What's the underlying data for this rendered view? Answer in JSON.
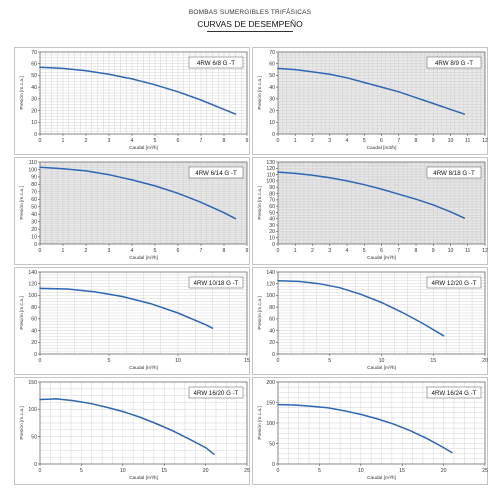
{
  "header": {
    "brand": "BOMBAS SUMERGIBLES TRIFÁSICAS",
    "subtitle": "CURVAS DE DESEMPEÑO"
  },
  "colors": {
    "curve": "#2e66b4",
    "shaded_bg": "#e9e9e9"
  },
  "chart_data": [
    {
      "type": "line",
      "title": "4RW 6/8 G -T",
      "xlabel": "Caudal [m³/h]",
      "ylabel": "Presión [m.c.a.]",
      "xlim": [
        0,
        9
      ],
      "ylim": [
        0,
        70
      ],
      "xticks": [
        0,
        1,
        2,
        3,
        4,
        5,
        6,
        7,
        8,
        9
      ],
      "yticks": [
        0,
        10,
        20,
        30,
        40,
        50,
        60,
        70
      ],
      "shaded": false,
      "grid": true,
      "series": [
        {
          "x": [
            0,
            1,
            2,
            3,
            4,
            5,
            6,
            7,
            8,
            8.5
          ],
          "y": [
            57,
            56,
            54,
            51,
            47,
            42,
            36,
            29,
            21,
            17
          ]
        }
      ]
    },
    {
      "type": "line",
      "title": "4RW 8/9 G -T",
      "xlabel": "Caudal [m3/h]",
      "ylabel": "Presión [m.c.a.]",
      "xlim": [
        0,
        12
      ],
      "ylim": [
        0,
        70
      ],
      "xticks": [
        0,
        1,
        2,
        3,
        4,
        5,
        6,
        7,
        8,
        9,
        10,
        11,
        12
      ],
      "yticks": [
        0,
        10,
        20,
        30,
        40,
        50,
        60,
        70
      ],
      "shaded": true,
      "grid": true,
      "series": [
        {
          "x": [
            0,
            1,
            2,
            3,
            4,
            5,
            6,
            7,
            8,
            9,
            10,
            10.8
          ],
          "y": [
            56,
            55,
            53,
            51,
            48,
            44,
            40,
            36,
            31,
            26,
            21,
            17
          ]
        }
      ]
    },
    {
      "type": "line",
      "title": "4RW 6/14 G -T",
      "xlabel": "Caudal [m³/h]",
      "ylabel": "Presión [m.c.a.]",
      "xlim": [
        0,
        9
      ],
      "ylim": [
        0,
        110
      ],
      "xticks": [
        0,
        1,
        2,
        3,
        4,
        5,
        6,
        7,
        8,
        9
      ],
      "yticks": [
        0,
        10,
        20,
        30,
        40,
        50,
        60,
        70,
        80,
        90,
        100,
        110
      ],
      "shaded": true,
      "grid": true,
      "series": [
        {
          "x": [
            0,
            1,
            2,
            3,
            4,
            5,
            6,
            7,
            8,
            8.5
          ],
          "y": [
            103,
            101,
            98,
            93,
            86,
            78,
            68,
            56,
            42,
            34
          ]
        }
      ]
    },
    {
      "type": "line",
      "title": "4RW 8/18 G -T",
      "xlabel": "Caudal [m³/h]",
      "ylabel": "Presión [m.c.a.]",
      "xlim": [
        0,
        12
      ],
      "ylim": [
        0,
        130
      ],
      "xticks": [
        0,
        1,
        2,
        3,
        4,
        5,
        6,
        7,
        8,
        9,
        10,
        11,
        12
      ],
      "yticks": [
        0,
        10,
        20,
        30,
        40,
        50,
        60,
        70,
        80,
        90,
        100,
        110,
        120,
        130
      ],
      "shaded": true,
      "grid": true,
      "series": [
        {
          "x": [
            0,
            1,
            2,
            3,
            4,
            5,
            6,
            7,
            8,
            9,
            10,
            10.8
          ],
          "y": [
            114,
            112,
            109,
            105,
            100,
            94,
            87,
            79,
            71,
            62,
            51,
            41
          ]
        }
      ]
    },
    {
      "type": "line",
      "title": "4RW 10/18 G -T",
      "xlabel": "Caudal [m³/h]",
      "ylabel": "Presión [m.c.a.]",
      "xlim": [
        0,
        15
      ],
      "ylim": [
        0,
        140
      ],
      "xticks": [
        0,
        5,
        10,
        15
      ],
      "yticks": [
        0,
        20,
        40,
        60,
        80,
        100,
        120,
        140
      ],
      "shaded": false,
      "grid": true,
      "series": [
        {
          "x": [
            0,
            2,
            4,
            6,
            8,
            10,
            12,
            12.5
          ],
          "y": [
            112,
            111,
            106,
            98,
            86,
            70,
            50,
            44
          ]
        }
      ]
    },
    {
      "type": "line",
      "title": "4RW 12/20 G -T",
      "xlabel": "Caudal [m³/h]",
      "ylabel": "Presión [m.c.a.]",
      "xlim": [
        0,
        20
      ],
      "ylim": [
        0,
        140
      ],
      "xticks": [
        0,
        5,
        10,
        15,
        20
      ],
      "yticks": [
        0,
        20,
        40,
        60,
        80,
        100,
        120,
        140
      ],
      "shaded": false,
      "grid": true,
      "series": [
        {
          "x": [
            0,
            2,
            4,
            6,
            8,
            10,
            12,
            14,
            16
          ],
          "y": [
            125,
            124,
            120,
            113,
            102,
            88,
            71,
            52,
            31
          ]
        }
      ]
    },
    {
      "type": "line",
      "title": "4RW 16/20 G -T",
      "xlabel": "Caudal [m³/h]",
      "ylabel": "Presión [m.c.a.]",
      "xlim": [
        0,
        25
      ],
      "ylim": [
        0,
        150
      ],
      "xticks": [
        0,
        5,
        10,
        15,
        20,
        25
      ],
      "yticks": [
        0,
        50,
        100,
        150
      ],
      "shaded": false,
      "grid": true,
      "series": [
        {
          "x": [
            0,
            2,
            4,
            6,
            8,
            10,
            12,
            14,
            16,
            18,
            20,
            21
          ],
          "y": [
            118,
            119,
            116,
            111,
            104,
            96,
            86,
            74,
            61,
            46,
            30,
            18
          ]
        }
      ]
    },
    {
      "type": "line",
      "title": "4RW 16/24 G -T",
      "xlabel": "Caudal [m³/h]",
      "ylabel": "Presión [m.c.a.]",
      "xlim": [
        0,
        25
      ],
      "ylim": [
        0,
        200
      ],
      "xticks": [
        0,
        5,
        10,
        15,
        20,
        25
      ],
      "yticks": [
        0,
        50,
        100,
        150,
        200
      ],
      "shaded": false,
      "grid": true,
      "series": [
        {
          "x": [
            0,
            2,
            4,
            6,
            8,
            10,
            12,
            14,
            16,
            18,
            20,
            21
          ],
          "y": [
            145,
            144,
            141,
            137,
            130,
            121,
            110,
            97,
            81,
            62,
            40,
            28
          ]
        }
      ]
    }
  ]
}
